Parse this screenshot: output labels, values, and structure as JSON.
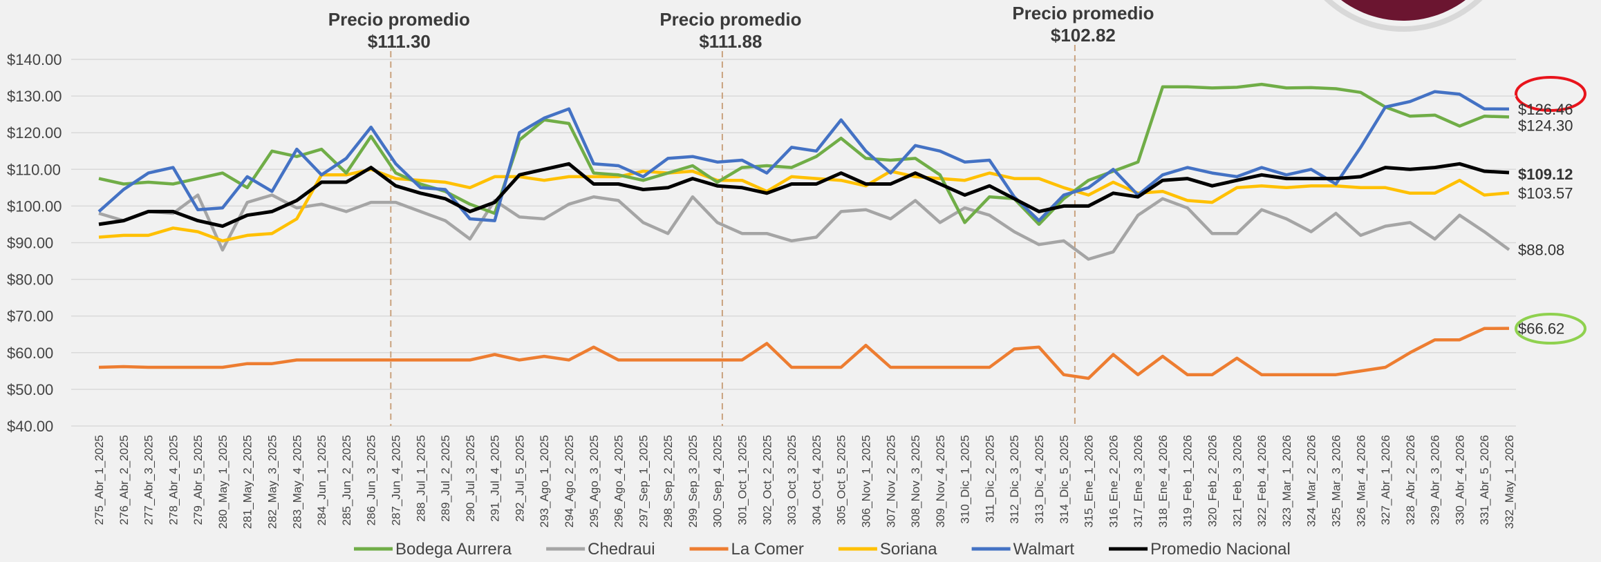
{
  "chart_data": {
    "type": "line",
    "categories": [
      "275_Abr_1_2025",
      "276_Abr_2_2025",
      "277_Abr_3_2025",
      "278_Abr_4_2025",
      "279_Abr_5_2025",
      "280_May_1_2025",
      "281_May_2_2025",
      "282_May_3_2025",
      "283_May_4_2025",
      "284_Jun_1_2025",
      "285_Jun_2_2025",
      "286_Jun_3_2025",
      "287_Jun_4_2025",
      "288_Jul_1_2025",
      "289_Jul_2_2025",
      "290_Jul_3_2025",
      "291_Jul_4_2025",
      "292_Jul_5_2025",
      "293_Ago_1_2025",
      "294_Ago_2_2025",
      "295_Ago_3_2025",
      "296_Ago_4_2025",
      "297_Sep_1_2025",
      "298_Sep_2_2025",
      "299_Sep_3_2025",
      "300_Sep_4_2025",
      "301_Oct_1_2025",
      "302_Oct_2_2025",
      "303_Oct_3_2025",
      "304_Oct_4_2025",
      "305_Oct_5_2025",
      "306_Nov_1_2025",
      "307_Nov_2_2025",
      "308_Nov_3_2025",
      "309_Nov_4_2025",
      "310_Dic_1_2025",
      "311_Dic_2_2025",
      "312_Dic_3_2025",
      "313_Dic_4_2025",
      "314_Dic_5_2025",
      "315_Ene_1_2026",
      "316_Ene_2_2026",
      "317_Ene_3_2026",
      "318_Ene_4_2026",
      "319_Feb_1_2026",
      "320_Feb_2_2026",
      "321_Feb_3_2026",
      "322_Feb_4_2026",
      "323_Mar_1_2026",
      "324_Mar_2_2026",
      "325_Mar_3_2026",
      "326_Mar_4_2026",
      "327_Abr_1_2026",
      "328_Abr_2_2026",
      "329_Abr_3_2026",
      "330_Abr_4_2026",
      "331_Abr_5_2026",
      "332_May_1_2026"
    ],
    "series": [
      {
        "name": "Bodega Aurrera",
        "color": "#70ad47",
        "values": [
          107.5,
          106,
          106.5,
          106,
          107.5,
          109,
          105,
          115,
          113.5,
          115.5,
          109,
          119,
          109,
          106,
          104,
          100.5,
          98,
          118,
          123.5,
          122.5,
          109,
          108.5,
          107,
          109,
          111,
          106.5,
          110.5,
          111,
          110.5,
          113.5,
          118.5,
          113,
          112.5,
          113,
          108.5,
          95.5,
          102.5,
          102,
          95,
          102,
          107,
          109.5,
          112,
          132.5,
          132.5,
          132.2,
          132.4,
          133.2,
          132.2,
          132.3,
          132,
          131,
          127,
          124.5,
          124.8,
          121.8,
          124.5,
          124.3
        ],
        "end_label": "$124.30"
      },
      {
        "name": "Chedraui",
        "color": "#a5a5a5",
        "values": [
          98,
          96,
          98.5,
          98,
          103,
          88,
          101,
          103,
          99.5,
          100.5,
          98.5,
          101,
          101,
          98.5,
          96,
          91,
          101.5,
          97,
          96.5,
          100.5,
          102.5,
          101.5,
          95.5,
          92.5,
          102.5,
          95.5,
          92.5,
          92.5,
          90.5,
          91.5,
          98.5,
          99,
          96.5,
          101.5,
          95.5,
          99.5,
          97.5,
          93,
          89.5,
          90.5,
          85.5,
          87.5,
          97.5,
          102,
          99.5,
          92.5,
          92.5,
          99,
          96.5,
          93,
          98,
          92,
          94.5,
          95.5,
          91,
          97.5,
          93,
          88.08
        ],
        "end_label": "$88.08"
      },
      {
        "name": "La Comer",
        "color": "#ed7d31",
        "values": [
          56,
          56.2,
          56,
          56,
          56,
          56,
          57,
          57,
          58,
          58,
          58,
          58,
          58,
          58,
          58,
          58,
          59.5,
          58,
          59,
          58,
          61.5,
          58,
          58,
          58,
          58,
          58,
          58,
          62.5,
          56,
          56,
          56,
          62,
          56,
          56,
          56,
          56,
          56,
          61,
          61.5,
          54,
          53,
          59.5,
          54,
          59,
          54,
          54,
          58.5,
          54,
          54,
          54,
          54,
          55,
          56,
          60,
          63.5,
          63.5,
          66.6,
          66.62
        ],
        "end_label": "$66.62"
      },
      {
        "name": "Soriana",
        "color": "#ffc000",
        "values": [
          91.5,
          92,
          92,
          94,
          93,
          90.5,
          92,
          92.5,
          96.5,
          108.5,
          108.5,
          110,
          107.5,
          107,
          106.5,
          105,
          108,
          108,
          107,
          108,
          108,
          108,
          109.5,
          109,
          109.5,
          107,
          107,
          104,
          108,
          107.5,
          107,
          105.5,
          109.5,
          108,
          107.5,
          107,
          109,
          107.5,
          107.5,
          105,
          103,
          106.5,
          103.5,
          104,
          101.5,
          101,
          105,
          105.5,
          105,
          105.5,
          105.5,
          105,
          105,
          103.5,
          103.5,
          107,
          103,
          103.57
        ],
        "end_label": "$103.57"
      },
      {
        "name": "Walmart",
        "color": "#4472c4",
        "values": [
          98.5,
          104.5,
          109,
          110.5,
          99,
          99.5,
          108,
          104,
          115.5,
          108.5,
          113,
          121.5,
          111.5,
          105,
          104.5,
          96.5,
          96,
          120,
          124,
          126.5,
          111.5,
          111,
          108,
          113,
          113.5,
          112,
          112.5,
          109,
          116,
          115,
          123.5,
          115,
          109,
          116.5,
          115,
          112,
          112.5,
          102.5,
          96,
          103,
          105,
          110,
          103,
          108.5,
          110.5,
          109,
          108,
          110.5,
          108.5,
          110,
          106,
          116,
          127,
          128.5,
          131.2,
          130.5,
          126.5,
          126.46
        ],
        "end_label": "$126.46"
      },
      {
        "name": "Promedio Nacional",
        "color": "#000000",
        "values": [
          95,
          96,
          98.5,
          98.5,
          96,
          94.5,
          97.5,
          98.5,
          101.5,
          106.5,
          106.5,
          110.5,
          105.5,
          103.5,
          102,
          98.5,
          101,
          108.5,
          110,
          111.5,
          106,
          106,
          104.5,
          105,
          107.5,
          105.5,
          105,
          103.5,
          106,
          106,
          109,
          106,
          106,
          109,
          106,
          103,
          105.5,
          102,
          98.5,
          100,
          100,
          103.5,
          102.5,
          107,
          107.5,
          105.5,
          107,
          108.5,
          107.5,
          107.5,
          107.5,
          108,
          110.5,
          110,
          110.5,
          111.5,
          109.5,
          109.12
        ],
        "end_label": "$109.12"
      }
    ],
    "ylim": [
      40,
      140
    ],
    "yticks": [
      {
        "value": 40,
        "label": "$40.00"
      },
      {
        "value": 50,
        "label": "$50.00"
      },
      {
        "value": 60,
        "label": "$60.00"
      },
      {
        "value": 70,
        "label": "$70.00"
      },
      {
        "value": 80,
        "label": "$80.00"
      },
      {
        "value": 90,
        "label": "$90.00"
      },
      {
        "value": 100,
        "label": "$100.00"
      },
      {
        "value": 110,
        "label": "$110.00"
      },
      {
        "value": 120,
        "label": "$120.00"
      },
      {
        "value": 130,
        "label": "$130.00"
      },
      {
        "value": 140,
        "label": "$140.00"
      }
    ],
    "grid": true,
    "annotations": [
      {
        "text": "Precio promedio",
        "value_label": "$111.30"
      },
      {
        "text": "Precio promedio",
        "value_label": "$111.88"
      },
      {
        "text": "Precio promedio",
        "value_label": "$102.82"
      }
    ]
  }
}
